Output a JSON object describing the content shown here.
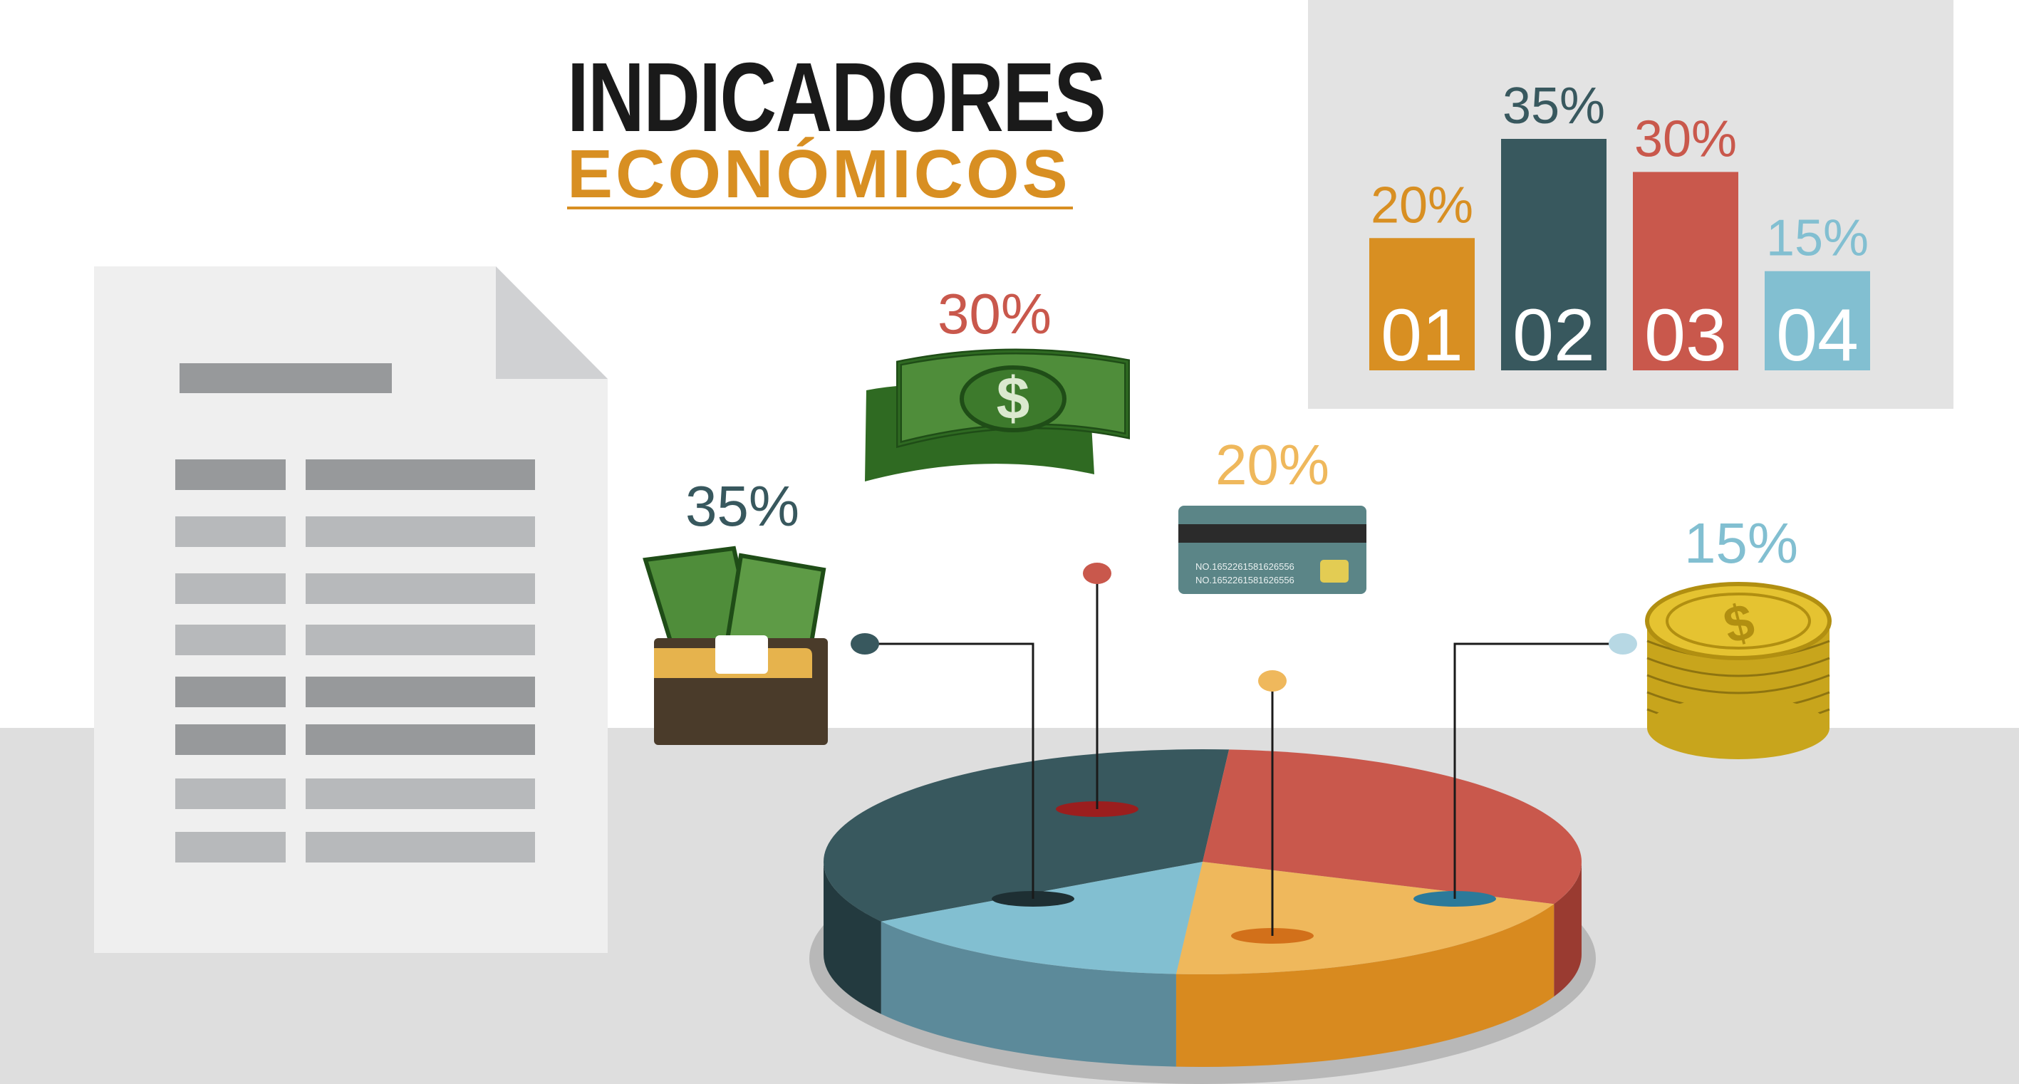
{
  "title": {
    "line1": "INDICADORES",
    "line2": "ECONÓMICOS"
  },
  "icons": {
    "banknotes": "banknotes-icon",
    "wallet": "wallet-with-cash-icon",
    "credit_card": "credit-card-icon",
    "coins": "coin-stack-icon",
    "document": "document-icon"
  },
  "credit_card_text": {
    "line1": "NO.1652261581626556",
    "line2": "NO.1652261581626556"
  },
  "colors": {
    "orange": "#d88f22",
    "dark_teal": "#38585e",
    "red": "#c9584c",
    "light_blue": "#82bfd1",
    "yellow": "#efb85c",
    "green": "#4f8d3a",
    "gray_panel": "#e3e3e3",
    "floor": "#dedede"
  },
  "chart_data": [
    {
      "type": "bar",
      "categories": [
        "01",
        "02",
        "03",
        "04"
      ],
      "values": [
        20,
        35,
        30,
        15
      ],
      "value_labels": [
        "20%",
        "35%",
        "30%",
        "15%"
      ],
      "colors": [
        "#d88f22",
        "#38585e",
        "#c9584c",
        "#82bfd1"
      ],
      "ylim": [
        0,
        35
      ]
    },
    {
      "type": "pie",
      "labels": [
        "35%",
        "30%",
        "20%",
        "15%"
      ],
      "values": [
        35,
        30,
        20,
        15
      ],
      "colors": [
        "#38585e",
        "#c9584c",
        "#efb85c",
        "#82bfd1"
      ]
    }
  ]
}
